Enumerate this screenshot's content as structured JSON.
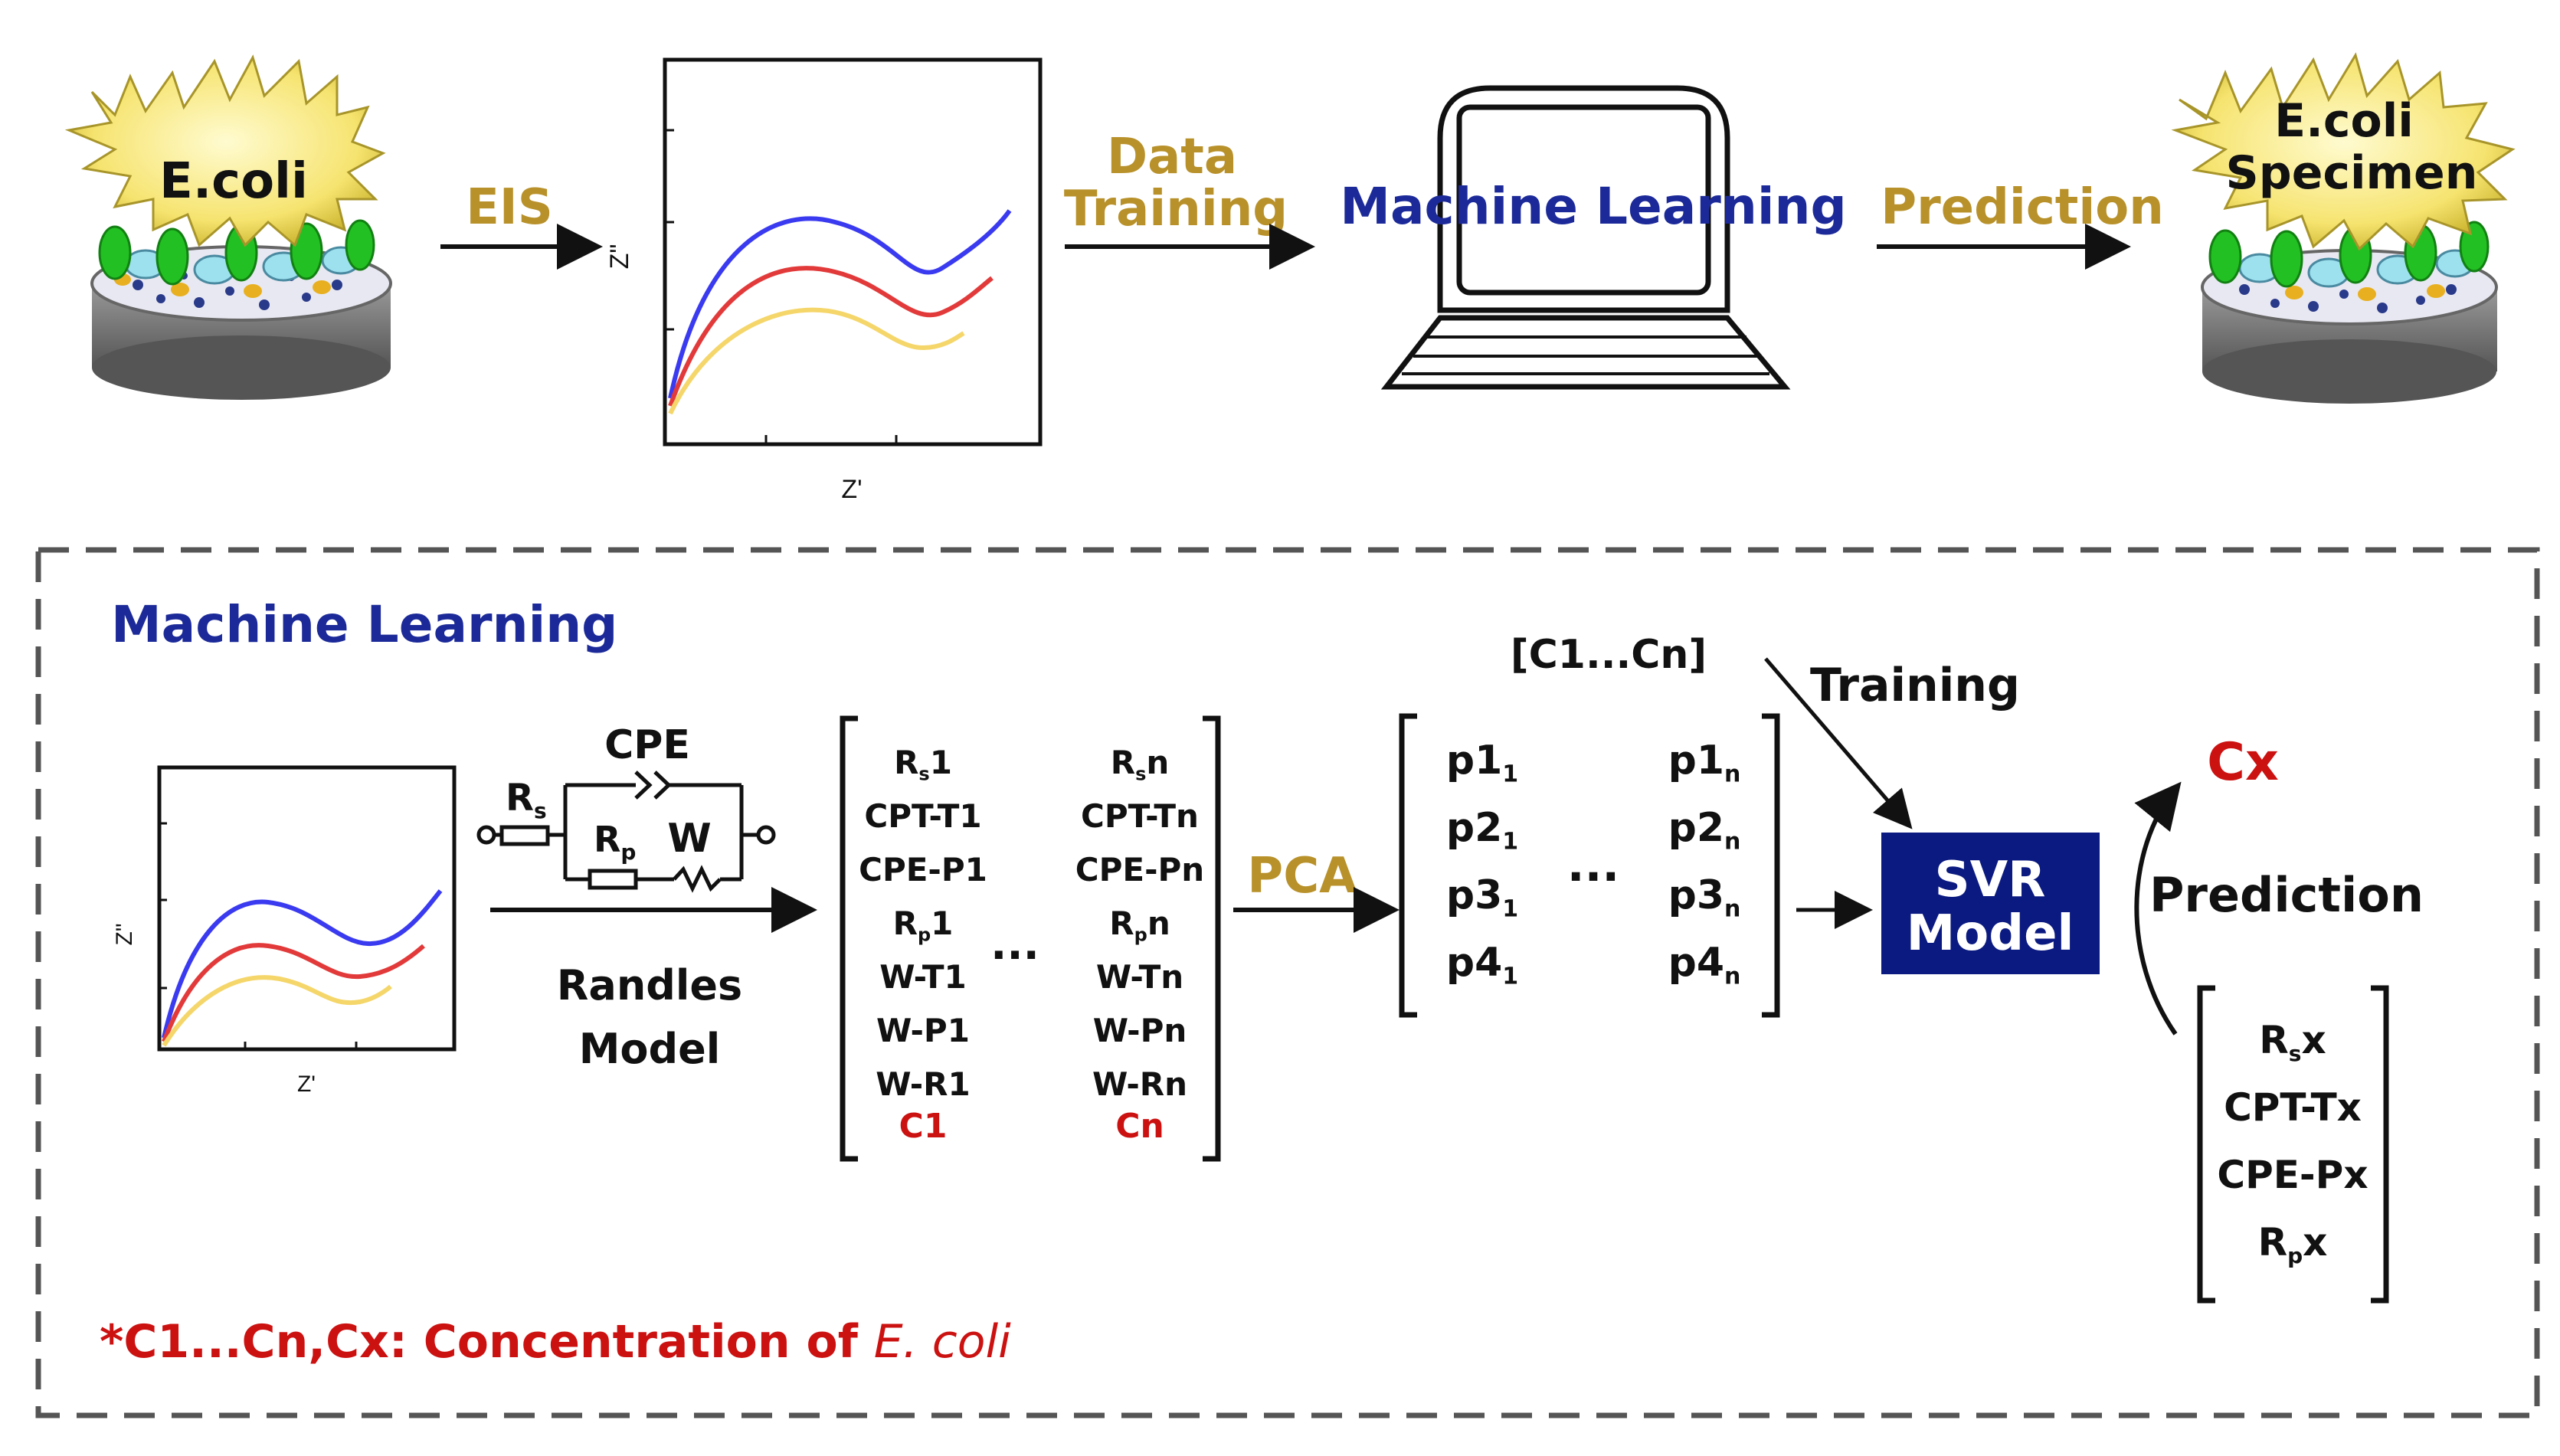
{
  "top": {
    "left_bacteria_label": "E.coli",
    "eis_label": "EIS",
    "plot_ylabel": "Z\"",
    "plot_xlabel": "Z'",
    "data_label": "Data",
    "training_label": "Training",
    "ml_label": "Machine Learning",
    "prediction_label": "Prediction",
    "right_label_line1": "E.coli",
    "right_label_line2": "Specimen"
  },
  "box": {
    "title": "Machine Learning",
    "plot_ylabel": "Z\"",
    "plot_xlabel": "Z'",
    "circuit": {
      "cpe": "CPE",
      "rs": "R",
      "rs_sub": "s",
      "rp": "R",
      "rp_sub": "p",
      "w": "W"
    },
    "randles_line1": "Randles",
    "randles_line2": "Model",
    "matrix_left": [
      {
        "t": "R",
        "s": "s",
        "e": "1"
      },
      {
        "t": "CPT-T1",
        "s": "",
        "e": ""
      },
      {
        "t": "CPE-P1",
        "s": "",
        "e": ""
      },
      {
        "t": "R",
        "s": "p",
        "e": "1"
      },
      {
        "t": "W-T1",
        "s": "",
        "e": ""
      },
      {
        "t": "W-P1",
        "s": "",
        "e": ""
      },
      {
        "t": "W-R1",
        "s": "",
        "e": ""
      }
    ],
    "matrix_left_last": "C1",
    "matrix_right": [
      {
        "t": "R",
        "s": "s",
        "e": "n"
      },
      {
        "t": "CPT-Tn",
        "s": "",
        "e": ""
      },
      {
        "t": "CPE-Pn",
        "s": "",
        "e": ""
      },
      {
        "t": "R",
        "s": "p",
        "e": "n"
      },
      {
        "t": "W-Tn",
        "s": "",
        "e": ""
      },
      {
        "t": "W-Pn",
        "s": "",
        "e": ""
      },
      {
        "t": "W-Rn",
        "s": "",
        "e": ""
      }
    ],
    "matrix_right_last": "Cn",
    "ellipsis": "...",
    "pca_label": "PCA",
    "c_range": "[C1...Cn]",
    "training_label": "Training",
    "p_left": [
      {
        "t": "p1",
        "s": "1"
      },
      {
        "t": "p2",
        "s": "1"
      },
      {
        "t": "p3",
        "s": "1"
      },
      {
        "t": "p4",
        "s": "1"
      }
    ],
    "p_right": [
      {
        "t": "p1",
        "s": "n"
      },
      {
        "t": "p2",
        "s": "n"
      },
      {
        "t": "p3",
        "s": "n"
      },
      {
        "t": "p4",
        "s": "n"
      }
    ],
    "p_ellipsis": "...",
    "svr_line1": "SVR",
    "svr_line2": "Model",
    "cx_label": "Cx",
    "prediction_label": "Prediction",
    "x_matrix": [
      {
        "t": "R",
        "s": "s",
        "e": "x"
      },
      {
        "t": "CPT-Tx",
        "s": "",
        "e": ""
      },
      {
        "t": "CPE-Px",
        "s": "",
        "e": ""
      },
      {
        "t": "R",
        "s": "p",
        "e": "x"
      }
    ],
    "footnote_main": "*C1...Cn,Cx: Concentration of ",
    "footnote_italic": "E. coli"
  },
  "colors": {
    "gold": "#b8912a",
    "navy": "#1c2a99",
    "red": "#cc1111",
    "blue_curve": "#3a3af0",
    "red_curve": "#e23a3a",
    "yellow_curve": "#f5d66a",
    "svr_box": "#0b1a80"
  }
}
